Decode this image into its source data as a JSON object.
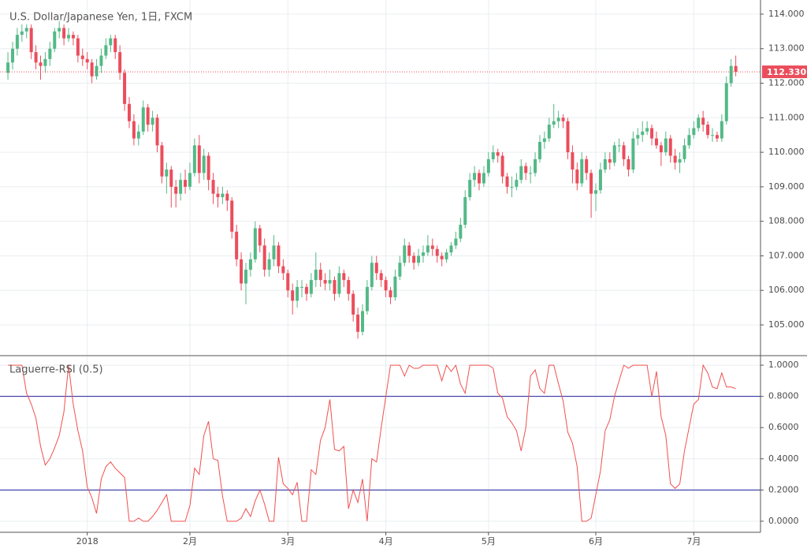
{
  "chart_data": [
    {
      "type": "candlestick",
      "title": "U.S. Dollar/Japanese Yen, 1日, FXCM",
      "up_color": "#53b987",
      "down_color": "#eb4d5c",
      "grid": true,
      "xlim": [
        -1.7,
        161.3
      ],
      "xticks": [
        {
          "value": 17,
          "label": "2018"
        },
        {
          "value": 39,
          "label": "2月"
        },
        {
          "value": 60,
          "label": "3月"
        },
        {
          "value": 81,
          "label": "4月"
        },
        {
          "value": 103,
          "label": "5月"
        },
        {
          "value": 126,
          "label": "6月"
        },
        {
          "value": 147,
          "label": "7月"
        }
      ],
      "ylim": [
        104.11,
        114.41
      ],
      "yticks": [
        {
          "value": 105,
          "label": "105.000"
        },
        {
          "value": 106,
          "label": "106.000"
        },
        {
          "value": 107,
          "label": "107.000"
        },
        {
          "value": 108,
          "label": "108.000"
        },
        {
          "value": 109,
          "label": "109.000"
        },
        {
          "value": 110,
          "label": "110.000"
        },
        {
          "value": 111,
          "label": "111.000"
        },
        {
          "value": 112,
          "label": "112.000"
        },
        {
          "value": 113,
          "label": "113.000"
        },
        {
          "value": 114,
          "label": "114.000"
        }
      ],
      "last_price": {
        "value": 112.33,
        "label": "112.330",
        "color": "#eb4d5c"
      },
      "candles": [
        [
          112.3,
          112.9,
          112.1,
          112.6
        ],
        [
          112.6,
          113.2,
          112.4,
          113.0
        ],
        [
          113.0,
          113.6,
          112.8,
          113.4
        ],
        [
          113.4,
          113.7,
          113.2,
          113.5
        ],
        [
          113.5,
          113.7,
          113.3,
          113.6
        ],
        [
          113.6,
          113.7,
          112.7,
          112.9
        ],
        [
          112.9,
          113.1,
          112.4,
          112.6
        ],
        [
          112.6,
          112.8,
          112.1,
          112.5
        ],
        [
          112.5,
          112.9,
          112.3,
          112.7
        ],
        [
          112.7,
          113.2,
          112.5,
          113.0
        ],
        [
          113.0,
          113.6,
          112.9,
          113.5
        ],
        [
          113.5,
          113.8,
          113.3,
          113.6
        ],
        [
          113.6,
          113.7,
          113.1,
          113.3
        ],
        [
          113.3,
          113.6,
          113.2,
          113.4
        ],
        [
          113.4,
          113.5,
          113.1,
          113.3
        ],
        [
          113.3,
          113.4,
          112.6,
          112.8
        ],
        [
          112.8,
          113.0,
          112.5,
          112.7
        ],
        [
          112.7,
          112.9,
          112.4,
          112.6
        ],
        [
          112.6,
          112.7,
          112.0,
          112.2
        ],
        [
          112.2,
          112.7,
          112.1,
          112.5
        ],
        [
          112.5,
          113.0,
          112.3,
          112.8
        ],
        [
          112.8,
          113.3,
          112.7,
          113.1
        ],
        [
          113.1,
          113.4,
          112.9,
          113.3
        ],
        [
          113.3,
          113.4,
          112.7,
          112.9
        ],
        [
          112.9,
          113.1,
          112.1,
          112.3
        ],
        [
          112.3,
          112.4,
          111.2,
          111.4
        ],
        [
          111.4,
          111.6,
          110.7,
          110.9
        ],
        [
          110.9,
          111.1,
          110.2,
          110.4
        ],
        [
          110.4,
          110.8,
          110.2,
          110.6
        ],
        [
          110.6,
          111.5,
          110.5,
          111.3
        ],
        [
          111.3,
          111.4,
          110.6,
          110.8
        ],
        [
          110.8,
          111.2,
          110.6,
          111.0
        ],
        [
          111.0,
          111.1,
          110.0,
          110.2
        ],
        [
          110.2,
          110.3,
          109.1,
          109.3
        ],
        [
          109.3,
          109.7,
          108.8,
          109.5
        ],
        [
          109.5,
          109.6,
          108.4,
          109.0
        ],
        [
          109.0,
          109.2,
          108.4,
          108.8
        ],
        [
          108.8,
          109.4,
          108.6,
          109.2
        ],
        [
          109.2,
          109.5,
          108.8,
          109.0
        ],
        [
          109.0,
          109.7,
          108.9,
          109.4
        ],
        [
          109.4,
          110.4,
          109.3,
          110.2
        ],
        [
          110.2,
          110.5,
          109.1,
          109.4
        ],
        [
          109.4,
          110.1,
          109.2,
          109.9
        ],
        [
          109.9,
          110.0,
          108.9,
          109.2
        ],
        [
          109.2,
          109.4,
          108.5,
          108.8
        ],
        [
          108.8,
          109.0,
          108.4,
          108.7
        ],
        [
          108.7,
          109.0,
          108.5,
          108.8
        ],
        [
          108.8,
          108.9,
          108.3,
          108.6
        ],
        [
          108.6,
          108.7,
          107.5,
          107.7
        ],
        [
          107.7,
          107.9,
          106.7,
          106.9
        ],
        [
          106.9,
          107.1,
          106.0,
          106.2
        ],
        [
          106.2,
          106.8,
          105.6,
          106.6
        ],
        [
          106.6,
          107.1,
          106.4,
          106.9
        ],
        [
          106.9,
          108.0,
          106.8,
          107.8
        ],
        [
          107.8,
          107.9,
          107.1,
          107.3
        ],
        [
          107.3,
          107.5,
          106.4,
          106.6
        ],
        [
          106.6,
          107.1,
          106.4,
          106.9
        ],
        [
          106.9,
          107.6,
          106.7,
          107.3
        ],
        [
          107.3,
          107.4,
          106.5,
          106.7
        ],
        [
          106.7,
          106.9,
          106.3,
          106.5
        ],
        [
          106.5,
          106.6,
          105.8,
          106.0
        ],
        [
          106.0,
          106.2,
          105.3,
          105.7
        ],
        [
          105.7,
          106.3,
          105.5,
          106.1
        ],
        [
          106.1,
          106.3,
          105.8,
          106.1
        ],
        [
          106.1,
          106.2,
          105.7,
          105.9
        ],
        [
          105.9,
          106.5,
          105.8,
          106.3
        ],
        [
          106.3,
          107.1,
          106.1,
          106.6
        ],
        [
          106.6,
          106.8,
          106.1,
          106.3
        ],
        [
          106.3,
          106.5,
          106.0,
          106.2
        ],
        [
          106.2,
          106.6,
          106.0,
          106.3
        ],
        [
          106.3,
          106.4,
          105.7,
          105.9
        ],
        [
          105.9,
          106.7,
          105.8,
          106.5
        ],
        [
          106.5,
          106.6,
          106.1,
          106.3
        ],
        [
          106.3,
          106.4,
          105.7,
          105.9
        ],
        [
          105.9,
          106.0,
          105.1,
          105.3
        ],
        [
          105.3,
          105.5,
          104.6,
          104.8
        ],
        [
          104.8,
          105.6,
          104.7,
          105.4
        ],
        [
          105.4,
          106.3,
          105.3,
          106.1
        ],
        [
          106.1,
          107.0,
          106.0,
          106.8
        ],
        [
          106.8,
          107.0,
          106.3,
          106.5
        ],
        [
          106.5,
          106.6,
          106.1,
          106.3
        ],
        [
          106.3,
          106.4,
          105.8,
          106.0
        ],
        [
          106.0,
          106.1,
          105.6,
          105.8
        ],
        [
          105.8,
          106.6,
          105.7,
          106.4
        ],
        [
          106.4,
          107.0,
          106.3,
          106.8
        ],
        [
          106.8,
          107.5,
          106.7,
          107.3
        ],
        [
          107.3,
          107.4,
          106.8,
          107.0
        ],
        [
          107.0,
          107.1,
          106.6,
          106.8
        ],
        [
          106.8,
          107.2,
          106.7,
          107.0
        ],
        [
          107.0,
          107.3,
          106.8,
          107.1
        ],
        [
          107.1,
          107.6,
          107.0,
          107.3
        ],
        [
          107.3,
          107.5,
          107.0,
          107.2
        ],
        [
          107.2,
          107.3,
          106.8,
          107.0
        ],
        [
          107.0,
          107.1,
          106.7,
          106.9
        ],
        [
          106.9,
          107.2,
          106.8,
          107.1
        ],
        [
          107.1,
          107.4,
          107.0,
          107.3
        ],
        [
          107.3,
          107.7,
          107.2,
          107.5
        ],
        [
          107.5,
          108.1,
          107.4,
          107.9
        ],
        [
          107.9,
          108.9,
          107.8,
          108.7
        ],
        [
          108.7,
          109.4,
          108.6,
          109.2
        ],
        [
          109.2,
          109.6,
          109.0,
          109.4
        ],
        [
          109.4,
          109.5,
          108.9,
          109.1
        ],
        [
          109.1,
          109.6,
          109.0,
          109.4
        ],
        [
          109.4,
          110.0,
          109.3,
          109.8
        ],
        [
          109.8,
          110.2,
          109.7,
          110.0
        ],
        [
          110.0,
          110.1,
          109.7,
          109.9
        ],
        [
          109.9,
          110.0,
          109.1,
          109.3
        ],
        [
          109.3,
          109.4,
          108.8,
          109.0
        ],
        [
          109.0,
          109.3,
          108.7,
          109.0
        ],
        [
          109.0,
          109.4,
          108.9,
          109.2
        ],
        [
          109.2,
          109.8,
          109.1,
          109.6
        ],
        [
          109.6,
          109.7,
          109.2,
          109.4
        ],
        [
          109.4,
          109.6,
          109.1,
          109.4
        ],
        [
          109.4,
          110.0,
          109.3,
          109.8
        ],
        [
          109.8,
          110.5,
          109.7,
          110.3
        ],
        [
          110.3,
          110.6,
          110.1,
          110.4
        ],
        [
          110.4,
          111.0,
          110.3,
          110.8
        ],
        [
          110.8,
          111.4,
          110.7,
          110.9
        ],
        [
          110.9,
          111.2,
          110.7,
          111.0
        ],
        [
          111.0,
          111.1,
          110.7,
          110.9
        ],
        [
          110.9,
          111.0,
          109.8,
          110.0
        ],
        [
          110.0,
          110.2,
          109.1,
          109.5
        ],
        [
          109.5,
          109.7,
          108.9,
          109.1
        ],
        [
          109.1,
          110.0,
          109.0,
          109.8
        ],
        [
          109.8,
          109.9,
          109.2,
          109.4
        ],
        [
          109.4,
          109.5,
          108.1,
          108.8
        ],
        [
          108.8,
          109.1,
          108.3,
          108.9
        ],
        [
          108.9,
          109.7,
          108.8,
          109.5
        ],
        [
          109.5,
          110.0,
          109.4,
          109.8
        ],
        [
          109.8,
          110.0,
          109.5,
          109.7
        ],
        [
          109.7,
          110.3,
          109.6,
          110.2
        ],
        [
          110.2,
          110.4,
          110.0,
          110.2
        ],
        [
          110.2,
          110.3,
          109.6,
          109.8
        ],
        [
          109.8,
          109.9,
          109.3,
          109.5
        ],
        [
          109.5,
          110.6,
          109.4,
          110.4
        ],
        [
          110.4,
          110.7,
          110.2,
          110.5
        ],
        [
          110.5,
          110.9,
          110.3,
          110.6
        ],
        [
          110.6,
          110.9,
          110.5,
          110.7
        ],
        [
          110.7,
          110.8,
          110.2,
          110.4
        ],
        [
          110.4,
          110.6,
          110.1,
          110.2
        ],
        [
          110.2,
          110.3,
          109.6,
          110.0
        ],
        [
          110.0,
          110.6,
          109.9,
          110.4
        ],
        [
          110.4,
          110.5,
          109.7,
          109.9
        ],
        [
          109.9,
          110.1,
          109.5,
          109.7
        ],
        [
          109.7,
          110.0,
          109.4,
          109.8
        ],
        [
          109.8,
          110.4,
          109.7,
          110.2
        ],
        [
          110.2,
          110.7,
          110.1,
          110.5
        ],
        [
          110.5,
          110.9,
          110.4,
          110.7
        ],
        [
          110.7,
          111.1,
          110.6,
          111.0
        ],
        [
          111.0,
          111.2,
          110.6,
          110.8
        ],
        [
          110.8,
          110.9,
          110.4,
          110.5
        ],
        [
          110.5,
          110.7,
          110.3,
          110.5
        ],
        [
          110.5,
          110.6,
          110.3,
          110.4
        ],
        [
          110.4,
          111.1,
          110.3,
          110.9
        ],
        [
          110.9,
          112.2,
          110.8,
          112.0
        ],
        [
          112.0,
          112.7,
          111.9,
          112.5
        ],
        [
          112.5,
          112.8,
          112.2,
          112.33
        ]
      ]
    },
    {
      "type": "line",
      "title": "Laguerre-RSI (0.5)",
      "color": "#f0504f",
      "grid": true,
      "xlim": [
        -1.7,
        161.3
      ],
      "ylim": [
        -0.071,
        1.056
      ],
      "yticks": [
        {
          "value": 0,
          "label": "0.0000"
        },
        {
          "value": 0.2,
          "label": "0.2000"
        },
        {
          "value": 0.4,
          "label": "0.4000"
        },
        {
          "value": 0.6,
          "label": "0.6000"
        },
        {
          "value": 0.8,
          "label": "0.8000"
        },
        {
          "value": 1,
          "label": "1.0000"
        }
      ],
      "levels": [
        0.8,
        0.2
      ],
      "level_color": "#1f1f9c",
      "values": [
        1.0,
        1.0,
        1.0,
        1.0,
        0.82,
        0.75,
        0.66,
        0.48,
        0.36,
        0.4,
        0.47,
        0.55,
        0.7,
        1.0,
        0.75,
        0.58,
        0.45,
        0.22,
        0.15,
        0.05,
        0.27,
        0.35,
        0.38,
        0.34,
        0.31,
        0.28,
        0.0,
        0.0,
        0.02,
        0.0,
        0.0,
        0.03,
        0.07,
        0.12,
        0.17,
        0.0,
        0.0,
        0.0,
        0.0,
        0.1,
        0.34,
        0.3,
        0.55,
        0.64,
        0.4,
        0.39,
        0.16,
        0.0,
        0.0,
        0.0,
        0.02,
        0.08,
        0.03,
        0.13,
        0.2,
        0.11,
        0.0,
        0.0,
        0.41,
        0.24,
        0.21,
        0.17,
        0.25,
        0.0,
        0.0,
        0.33,
        0.3,
        0.52,
        0.6,
        0.78,
        0.46,
        0.45,
        0.48,
        0.08,
        0.2,
        0.12,
        0.27,
        0.0,
        0.4,
        0.38,
        0.6,
        0.8,
        1.0,
        1.0,
        1.0,
        0.93,
        1.0,
        0.98,
        0.98,
        1.0,
        1.0,
        1.0,
        1.0,
        0.9,
        1.0,
        0.96,
        1.0,
        0.88,
        0.82,
        1.0,
        1.0,
        1.0,
        1.0,
        1.0,
        0.98,
        0.82,
        0.79,
        0.67,
        0.63,
        0.58,
        0.45,
        0.6,
        0.93,
        0.97,
        0.85,
        0.82,
        1.0,
        1.0,
        0.88,
        0.77,
        0.57,
        0.5,
        0.35,
        0.0,
        0.0,
        0.02,
        0.17,
        0.32,
        0.58,
        0.65,
        0.8,
        0.9,
        1.0,
        0.98,
        1.0,
        1.0,
        1.0,
        1.0,
        0.8,
        0.96,
        0.67,
        0.55,
        0.24,
        0.21,
        0.24,
        0.45,
        0.6,
        0.75,
        0.78,
        1.0,
        0.95,
        0.86,
        0.85,
        0.95,
        0.86,
        0.86,
        0.85
      ]
    }
  ]
}
